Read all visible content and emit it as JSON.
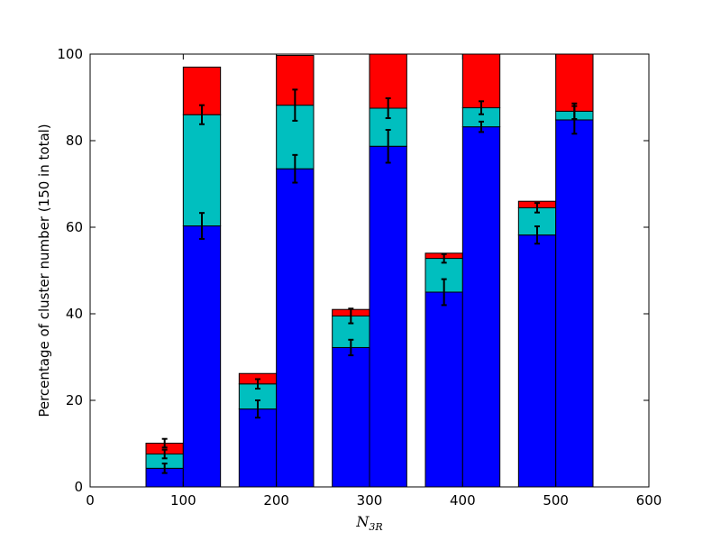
{
  "chart_data": {
    "type": "bar",
    "stacked": true,
    "xlabel": "N",
    "xlabel_subscript": "3R",
    "ylabel": "Percentage of cluster number (150 in total)",
    "xlim": [
      0,
      600
    ],
    "ylim": [
      0,
      100
    ],
    "xticks": [
      0,
      100,
      200,
      300,
      400,
      500,
      600
    ],
    "yticks": [
      0,
      20,
      40,
      60,
      80,
      100
    ],
    "grid": false,
    "bar_width": 40,
    "series_colors": [
      "#0000ff",
      "#00bfbf",
      "#ff0000"
    ],
    "bars": [
      {
        "x": 80,
        "values": [
          4.3,
          3.3,
          2.5
        ],
        "errors": [
          1.1,
          1.0,
          1.0
        ]
      },
      {
        "x": 120,
        "values": [
          60.3,
          25.7,
          11.0
        ],
        "errors": [
          3.0,
          2.2,
          0
        ]
      },
      {
        "x": 180,
        "values": [
          18.0,
          5.8,
          2.4
        ],
        "errors": [
          2.0,
          1.1,
          0
        ]
      },
      {
        "x": 220,
        "values": [
          73.5,
          14.7,
          11.5
        ],
        "errors": [
          3.2,
          3.6,
          0
        ]
      },
      {
        "x": 280,
        "values": [
          32.2,
          7.3,
          1.5
        ],
        "errors": [
          1.8,
          1.7,
          0
        ]
      },
      {
        "x": 320,
        "values": [
          78.7,
          8.8,
          12.5
        ],
        "errors": [
          3.8,
          2.3,
          0
        ]
      },
      {
        "x": 380,
        "values": [
          45.0,
          7.8,
          1.2
        ],
        "errors": [
          3.0,
          1.0,
          0
        ]
      },
      {
        "x": 420,
        "values": [
          83.2,
          4.4,
          12.4
        ],
        "errors": [
          1.2,
          1.5,
          0
        ]
      },
      {
        "x": 480,
        "values": [
          58.2,
          6.3,
          1.5
        ],
        "errors": [
          2.0,
          1.1,
          0
        ]
      },
      {
        "x": 520,
        "values": [
          84.8,
          2.0,
          13.2
        ],
        "errors": [
          3.2,
          1.8,
          0
        ]
      }
    ]
  }
}
